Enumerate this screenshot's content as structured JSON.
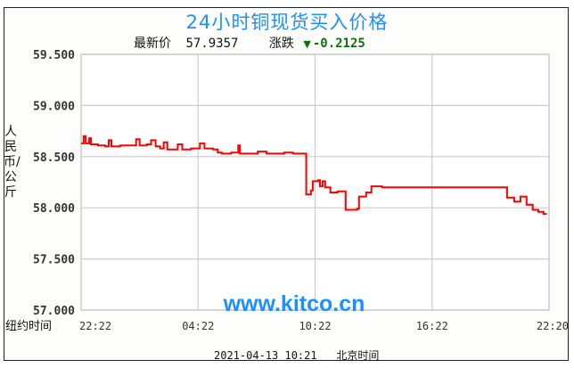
{
  "chart_data": {
    "type": "line",
    "title": "24小时铜现货买入价格",
    "latest_label": "最新价",
    "latest_value": "57.9357",
    "change_label": "涨跌",
    "change_value": "-0.2125",
    "change_direction": "down",
    "ylabel": "人民币/公斤",
    "xlabel_prefix": "纽约时间",
    "x_ticks": [
      "22:22",
      "04:22",
      "10:22",
      "16:22",
      "22:20"
    ],
    "y_ticks": [
      "59.500",
      "59.000",
      "58.500",
      "58.000",
      "57.500",
      "57.000"
    ],
    "ylim": [
      57.0,
      59.5
    ],
    "grid": true,
    "watermark": "www.kitco.cn",
    "footer_time": "2021-04-13 10:21",
    "footer_zone": "北京时间",
    "colors": {
      "line": "#ff0000",
      "title": "#1e8fff",
      "change": "#107010",
      "grid": "#cccccc"
    },
    "series": [
      {
        "points": [
          [
            "22:22",
            58.63
          ],
          [
            "22:30",
            58.7
          ],
          [
            "22:36",
            58.63
          ],
          [
            "22:47",
            58.68
          ],
          [
            "22:52",
            58.62
          ],
          [
            "23:14",
            58.61
          ],
          [
            "23:36",
            58.6
          ],
          [
            "23:47",
            58.66
          ],
          [
            "23:55",
            58.6
          ],
          [
            "00:22",
            58.61
          ],
          [
            "01:03",
            58.61
          ],
          [
            "01:11",
            58.67
          ],
          [
            "01:22",
            58.61
          ],
          [
            "01:44",
            58.62
          ],
          [
            "01:57",
            58.66
          ],
          [
            "02:11",
            58.6
          ],
          [
            "02:25",
            58.58
          ],
          [
            "02:36",
            58.64
          ],
          [
            "02:47",
            58.57
          ],
          [
            "03:06",
            58.57
          ],
          [
            "03:19",
            58.62
          ],
          [
            "03:33",
            58.57
          ],
          [
            "04:00",
            58.58
          ],
          [
            "04:19",
            58.58
          ],
          [
            "04:27",
            58.63
          ],
          [
            "04:41",
            58.58
          ],
          [
            "05:08",
            58.57
          ],
          [
            "05:22",
            58.54
          ],
          [
            "05:35",
            58.53
          ],
          [
            "06:03",
            58.54
          ],
          [
            "06:25",
            58.61
          ],
          [
            "06:30",
            58.53
          ],
          [
            "07:11",
            58.53
          ],
          [
            "07:25",
            58.55
          ],
          [
            "07:52",
            58.53
          ],
          [
            "08:46",
            58.54
          ],
          [
            "09:13",
            58.53
          ],
          [
            "09:52",
            58.53
          ],
          [
            "09:54",
            58.13
          ],
          [
            "10:08",
            58.17
          ],
          [
            "10:14",
            58.26
          ],
          [
            "10:30",
            58.27
          ],
          [
            "10:36",
            58.21
          ],
          [
            "10:44",
            58.26
          ],
          [
            "10:52",
            58.2
          ],
          [
            "11:08",
            58.15
          ],
          [
            "11:30",
            58.16
          ],
          [
            "11:55",
            57.98
          ],
          [
            "12:30",
            57.99
          ],
          [
            "12:36",
            58.11
          ],
          [
            "12:58",
            58.15
          ],
          [
            "13:14",
            58.21
          ],
          [
            "13:47",
            58.2
          ],
          [
            "15:36",
            58.2
          ],
          [
            "20:09",
            58.2
          ],
          [
            "20:11",
            58.1
          ],
          [
            "20:33",
            58.06
          ],
          [
            "20:52",
            58.11
          ],
          [
            "21:11",
            58.03
          ],
          [
            "21:30",
            57.98
          ],
          [
            "21:47",
            57.96
          ],
          [
            "22:03",
            57.94
          ],
          [
            "22:11",
            57.9357
          ]
        ]
      }
    ]
  }
}
